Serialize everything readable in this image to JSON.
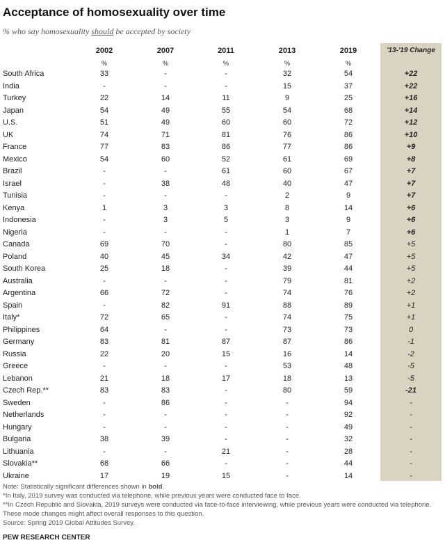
{
  "header": {
    "title": "Acceptance of homosexuality over time",
    "subtitle": [
      "% who say homosexuality ",
      "should",
      " be accepted by society"
    ]
  },
  "table": {
    "columns": [
      "2002",
      "2007",
      "2011",
      "2013",
      "2019",
      "'13-'19 Change"
    ],
    "units": [
      "%",
      "%",
      "%",
      "%",
      "%"
    ],
    "rows": [
      {
        "country": "South Africa",
        "values": [
          "33",
          "-",
          "-",
          "32",
          "54"
        ],
        "change": "+22",
        "significant": true
      },
      {
        "country": "India",
        "values": [
          "-",
          "-",
          "-",
          "15",
          "37"
        ],
        "change": "+22",
        "significant": true
      },
      {
        "country": "Turkey",
        "values": [
          "22",
          "14",
          "11",
          "9",
          "25"
        ],
        "change": "+16",
        "significant": true
      },
      {
        "country": "Japan",
        "values": [
          "54",
          "49",
          "55",
          "54",
          "68"
        ],
        "change": "+14",
        "significant": true
      },
      {
        "country": "U.S.",
        "values": [
          "51",
          "49",
          "60",
          "60",
          "72"
        ],
        "change": "+12",
        "significant": true
      },
      {
        "country": "UK",
        "values": [
          "74",
          "71",
          "81",
          "76",
          "86"
        ],
        "change": "+10",
        "significant": true
      },
      {
        "country": "France",
        "values": [
          "77",
          "83",
          "86",
          "77",
          "86"
        ],
        "change": "+9",
        "significant": true
      },
      {
        "country": "Mexico",
        "values": [
          "54",
          "60",
          "52",
          "61",
          "69"
        ],
        "change": "+8",
        "significant": true
      },
      {
        "country": "Brazil",
        "values": [
          "-",
          "-",
          "61",
          "60",
          "67"
        ],
        "change": "+7",
        "significant": true
      },
      {
        "country": "Israel",
        "values": [
          "-",
          "38",
          "48",
          "40",
          "47"
        ],
        "change": "+7",
        "significant": true
      },
      {
        "country": "Tunisia",
        "values": [
          "-",
          "-",
          "-",
          "2",
          "9"
        ],
        "change": "+7",
        "significant": true
      },
      {
        "country": "Kenya",
        "values": [
          "1",
          "3",
          "3",
          "8",
          "14"
        ],
        "change": "+6",
        "significant": true
      },
      {
        "country": "Indonesia",
        "values": [
          "-",
          "3",
          "5",
          "3",
          "9"
        ],
        "change": "+6",
        "significant": true
      },
      {
        "country": "Nigeria",
        "values": [
          "-",
          "-",
          "-",
          "1",
          "7"
        ],
        "change": "+6",
        "significant": true
      },
      {
        "country": "Canada",
        "values": [
          "69",
          "70",
          "-",
          "80",
          "85"
        ],
        "change": "+5",
        "significant": false
      },
      {
        "country": "Poland",
        "values": [
          "40",
          "45",
          "34",
          "42",
          "47"
        ],
        "change": "+5",
        "significant": false
      },
      {
        "country": "South Korea",
        "values": [
          "25",
          "18",
          "-",
          "39",
          "44"
        ],
        "change": "+5",
        "significant": false
      },
      {
        "country": "Australia",
        "values": [
          "-",
          "-",
          "-",
          "79",
          "81"
        ],
        "change": "+2",
        "significant": false
      },
      {
        "country": "Argentina",
        "values": [
          "66",
          "72",
          "-",
          "74",
          "76"
        ],
        "change": "+2",
        "significant": false
      },
      {
        "country": "Spain",
        "values": [
          "-",
          "82",
          "91",
          "88",
          "89"
        ],
        "change": "+1",
        "significant": false
      },
      {
        "country": "Italy*",
        "values": [
          "72",
          "65",
          "-",
          "74",
          "75"
        ],
        "change": "+1",
        "significant": false
      },
      {
        "country": "Philippines",
        "values": [
          "64",
          "-",
          "-",
          "73",
          "73"
        ],
        "change": "0",
        "significant": false
      },
      {
        "country": "Germany",
        "values": [
          "83",
          "81",
          "87",
          "87",
          "86"
        ],
        "change": "-1",
        "significant": false
      },
      {
        "country": "Russia",
        "values": [
          "22",
          "20",
          "15",
          "16",
          "14"
        ],
        "change": "-2",
        "significant": false
      },
      {
        "country": "Greece",
        "values": [
          "-",
          "-",
          "-",
          "53",
          "48"
        ],
        "change": "-5",
        "significant": false
      },
      {
        "country": "Lebanon",
        "values": [
          "21",
          "18",
          "17",
          "18",
          "13"
        ],
        "change": "-5",
        "significant": false
      },
      {
        "country": "Czech Rep.**",
        "values": [
          "83",
          "83",
          "-",
          "80",
          "59"
        ],
        "change": "-21",
        "significant": true
      },
      {
        "country": "Sweden",
        "values": [
          "-",
          "86",
          "-",
          "-",
          "94"
        ],
        "change": "-",
        "significant": false
      },
      {
        "country": "Netherlands",
        "values": [
          "-",
          "-",
          "-",
          "-",
          "92"
        ],
        "change": "-",
        "significant": false
      },
      {
        "country": "Hungary",
        "values": [
          "-",
          "-",
          "-",
          "-",
          "49"
        ],
        "change": "-",
        "significant": false
      },
      {
        "country": "Bulgaria",
        "values": [
          "38",
          "39",
          "-",
          "-",
          "32"
        ],
        "change": "-",
        "significant": false
      },
      {
        "country": "Lithuania",
        "values": [
          "-",
          "-",
          "21",
          "-",
          "28"
        ],
        "change": "-",
        "significant": false
      },
      {
        "country": "Slovakia**",
        "values": [
          "68",
          "66",
          "-",
          "-",
          "44"
        ],
        "change": "-",
        "significant": false
      },
      {
        "country": "Ukraine",
        "values": [
          "17",
          "19",
          "15",
          "-",
          "14"
        ],
        "change": "-",
        "significant": false
      }
    ]
  },
  "notes": {
    "note": [
      "Note: Statistically significant differences shown in ",
      "bold",
      "."
    ],
    "footnotes": [
      "*In Italy, 2019 survey was conducted via telephone, while previous years were conducted face to face.",
      "**In Czech Republic and Slovakia, 2019 surveys were conducted via face-to-face interviewing, while previous years were conducted via telephone. These mode changes might affect overall responses to this question."
    ],
    "source": "Source: Spring 2019 Global Attitudes Survey.",
    "brand": "PEW RESEARCH CENTER"
  }
}
